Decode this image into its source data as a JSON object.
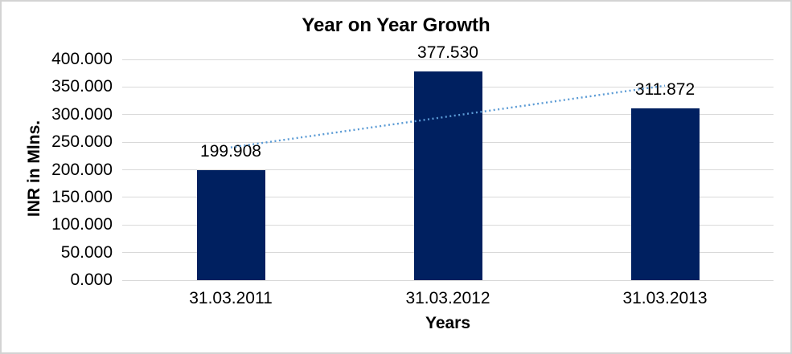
{
  "chart_data": {
    "type": "bar",
    "title": "Year on Year Growth",
    "xlabel": "Years",
    "ylabel": "INR in Mlns.",
    "categories": [
      "31.03.2011",
      "31.03.2012",
      "31.03.2013"
    ],
    "values": [
      199.908,
      377.53,
      311.872
    ],
    "data_labels": [
      "199.908",
      "377.530",
      "311.872"
    ],
    "ylim": [
      0,
      400
    ],
    "ytick_labels": [
      "400.000",
      "350.000",
      "300.000",
      "250.000",
      "200.000",
      "150.000",
      "100.000",
      "50.000",
      "0.000"
    ],
    "grid": true,
    "legend": false,
    "colors": {
      "bar": "#002060",
      "trendline": "#5B9BD5",
      "gridline": "#D9D9D9",
      "text": "#000000",
      "background": "#FFFFFF",
      "frame_border": "#D3D3D3"
    },
    "trendline": {
      "type": "linear",
      "style": "dotted",
      "start_value": 240.5,
      "end_value": 352.4
    }
  }
}
